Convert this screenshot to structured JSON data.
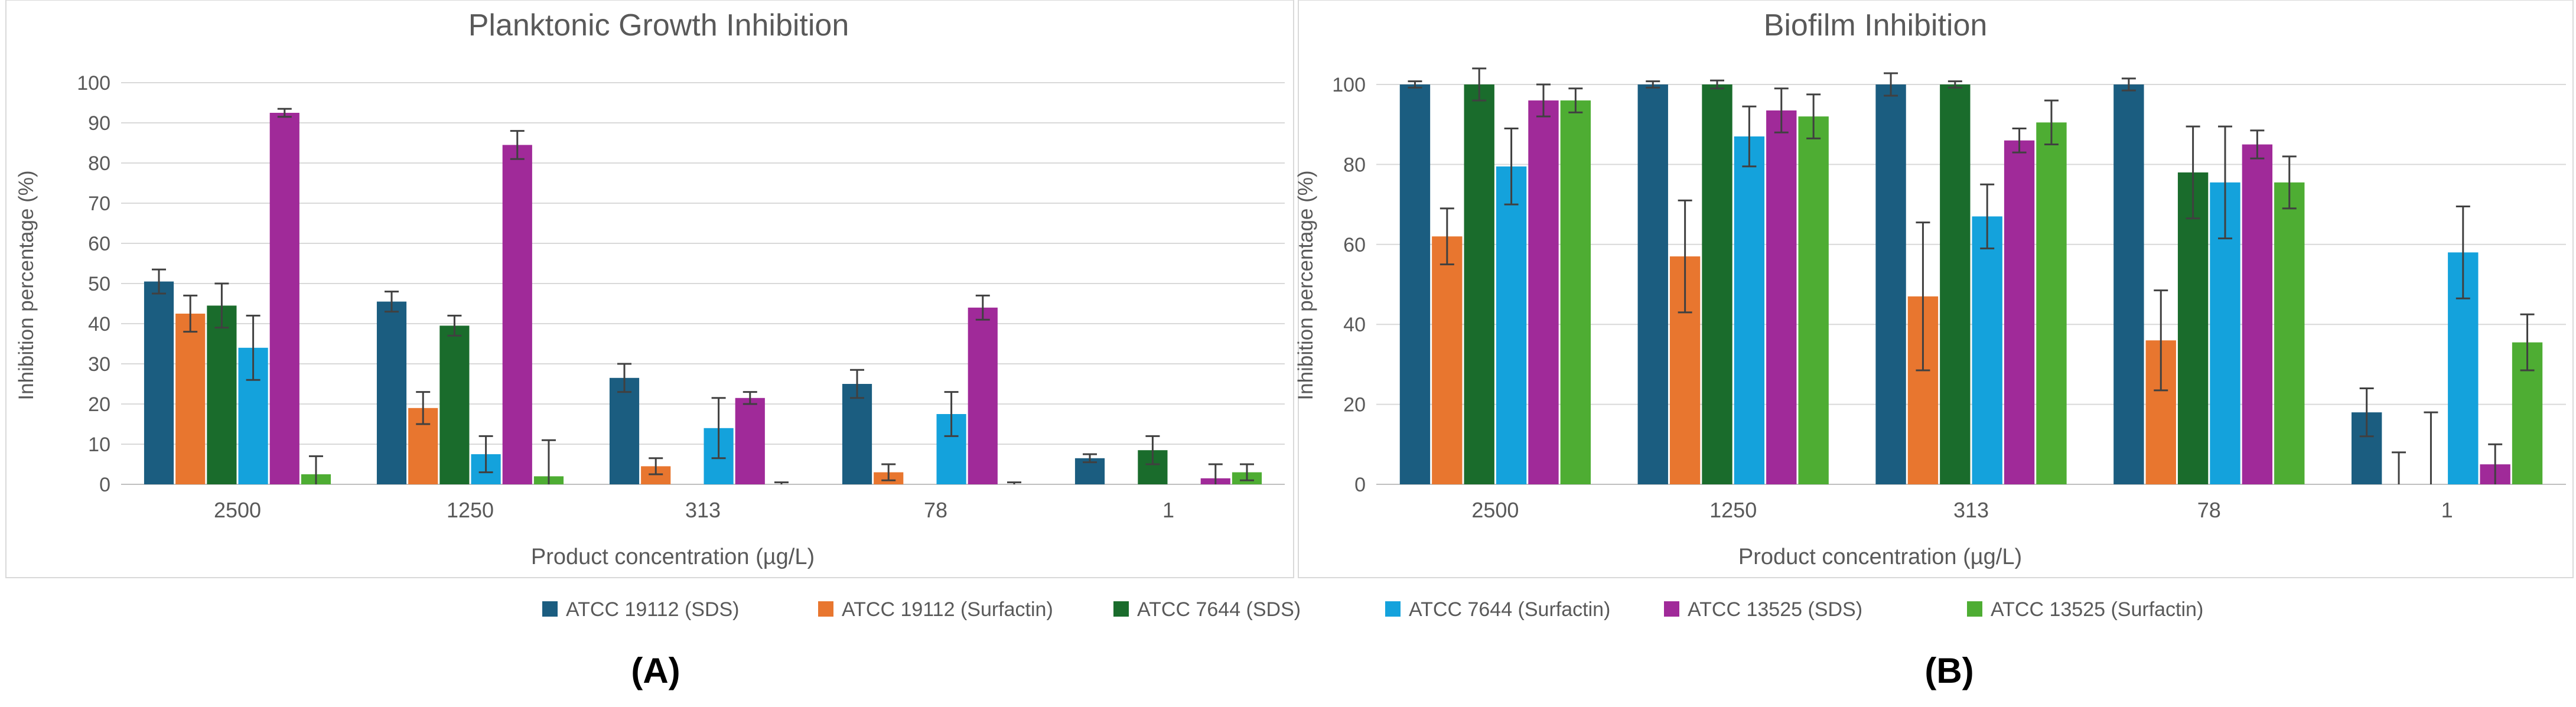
{
  "chart_data": [
    {
      "type": "bar",
      "title": "Planktonic Growth Inhibition",
      "xlabel": "Product concentration (µg/L)",
      "ylabel": "Inhibition percentage (%)",
      "categories": [
        "2500",
        "1250",
        "313",
        "78",
        "1"
      ],
      "ylim": [
        0,
        100
      ],
      "yticks": [
        0,
        10,
        20,
        30,
        40,
        50,
        60,
        70,
        80,
        90,
        100
      ],
      "grid": true,
      "series": [
        {
          "name": "ATCC 19112 (SDS)",
          "values": [
            50.5,
            45.5,
            26.5,
            25,
            6.5
          ],
          "errors": [
            3,
            2.5,
            3.5,
            3.5,
            1
          ]
        },
        {
          "name": "ATCC 19112 (Surfactin)",
          "values": [
            42.5,
            19,
            4.5,
            3,
            0
          ],
          "errors": [
            4.5,
            4,
            2,
            2,
            0
          ]
        },
        {
          "name": "ATCC 7644 (SDS)",
          "values": [
            44.5,
            39.5,
            0,
            0,
            8.5
          ],
          "errors": [
            5.5,
            2.5,
            0,
            0,
            3.5
          ]
        },
        {
          "name": "ATCC 7644 (Surfactin)",
          "values": [
            34,
            7.5,
            14,
            17.5,
            0
          ],
          "errors": [
            8,
            4.5,
            7.5,
            5.5,
            0
          ]
        },
        {
          "name": "ATCC 13525 (SDS)",
          "values": [
            92.5,
            84.5,
            21.5,
            44,
            1.5
          ],
          "errors": [
            1,
            3.5,
            1.5,
            3,
            3.5
          ]
        },
        {
          "name": "ATCC 13525 (Surfactin)",
          "values": [
            2.5,
            2,
            0,
            0,
            3
          ],
          "errors": [
            4.5,
            9,
            0.5,
            0.5,
            2
          ]
        }
      ],
      "panel_label": "(A)"
    },
    {
      "type": "bar",
      "title": "Biofilm Inhibition",
      "xlabel": "Product concentration (µg/L)",
      "ylabel": "Inhibition percentage (%)",
      "categories": [
        "2500",
        "1250",
        "313",
        "78",
        "1"
      ],
      "ylim": [
        0,
        110
      ],
      "yticks": [
        0,
        20,
        40,
        60,
        80,
        100
      ],
      "grid": true,
      "series": [
        {
          "name": "ATCC 19112 (SDS)",
          "values": [
            100,
            100,
            100,
            100,
            18
          ],
          "errors": [
            0.8,
            0.8,
            2.8,
            1.5,
            6
          ]
        },
        {
          "name": "ATCC 19112 (Surfactin)",
          "values": [
            62,
            57,
            47,
            36,
            0
          ],
          "errors": [
            7,
            14,
            18.5,
            12.5,
            8
          ]
        },
        {
          "name": "ATCC 7644 (SDS)",
          "values": [
            100,
            100,
            100,
            78,
            0
          ],
          "errors": [
            4,
            1,
            0.8,
            11.5,
            18
          ]
        },
        {
          "name": "ATCC 7644 (Surfactin)",
          "values": [
            79.5,
            87,
            67,
            75.5,
            58
          ],
          "errors": [
            9.5,
            7.5,
            8,
            14,
            11.5
          ]
        },
        {
          "name": "ATCC 13525 (SDS)",
          "values": [
            96,
            93.5,
            86,
            85,
            5
          ],
          "errors": [
            4,
            5.5,
            3,
            3.5,
            5
          ]
        },
        {
          "name": "ATCC 13525 (Surfactin)",
          "values": [
            96,
            92,
            90.5,
            75.5,
            35.5
          ],
          "errors": [
            3,
            5.5,
            5.5,
            6.5,
            7
          ]
        }
      ],
      "panel_label": "(B)"
    }
  ],
  "colors": {
    "ATCC 19112 (SDS)": "#1b5d80",
    "ATCC 19112 (Surfactin)": "#e8762f",
    "ATCC 7644 (SDS)": "#1a6c2c",
    "ATCC 7644 (Surfactin)": "#14a2dc",
    "ATCC 13525 (SDS)": "#a02a99",
    "ATCC 13525 (Surfactin)": "#4ead33"
  },
  "legend_position": "bottom-center",
  "legend": [
    "ATCC 19112 (SDS)",
    "ATCC 19112 (Surfactin)",
    "ATCC 7644 (SDS)",
    "ATCC 7644 (Surfactin)",
    "ATCC 13525 (SDS)",
    "ATCC 13525 (Surfactin)"
  ]
}
